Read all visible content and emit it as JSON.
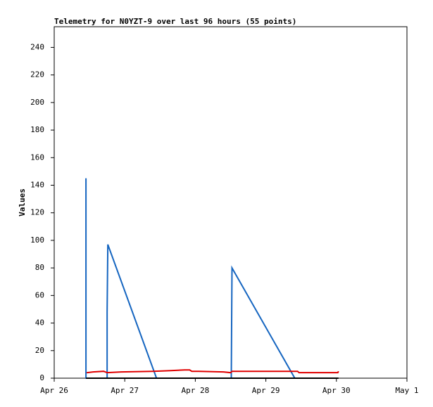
{
  "chart_data": {
    "type": "line",
    "title": "Telemetry for N0YZT-9 over last 96 hours (55 points)",
    "y_label": "Values",
    "xlim": [
      0,
      5
    ],
    "xticks": [
      {
        "value": 0,
        "label": "Apr 26"
      },
      {
        "value": 1,
        "label": "Apr 27"
      },
      {
        "value": 2,
        "label": "Apr 28"
      },
      {
        "value": 3,
        "label": "Apr 29"
      },
      {
        "value": 4,
        "label": "Apr 30"
      },
      {
        "value": 5,
        "label": "May 1"
      }
    ],
    "ylim": [
      0,
      255
    ],
    "yticks": [
      0,
      20,
      40,
      60,
      80,
      100,
      120,
      140,
      160,
      180,
      200,
      220,
      240
    ],
    "series": [
      {
        "color": "#1565c0",
        "x": [
          0.45,
          0.45,
          0.45,
          0.75,
          0.75,
          0.76,
          1.45,
          2.51,
          2.52,
          3.41
        ],
        "values": [
          0,
          145,
          0,
          0,
          48,
          97,
          0,
          0,
          80,
          0
        ]
      },
      {
        "color": "#e00000",
        "x": [
          0.46,
          0.47,
          0.55,
          0.7,
          0.75,
          0.95,
          1.4,
          1.65,
          1.85,
          1.92,
          1.95,
          2.05,
          2.4,
          2.5,
          2.52,
          3.45,
          3.47,
          4.02,
          4.03
        ],
        "values": [
          4,
          4,
          4.5,
          5,
          4,
          4.5,
          5,
          5.5,
          6,
          6,
          5,
          5,
          4.5,
          4,
          5,
          5,
          4,
          4,
          5
        ]
      },
      {
        "color": "#000000",
        "x": [
          0.45,
          4.03
        ],
        "values": [
          0,
          0
        ]
      }
    ]
  }
}
